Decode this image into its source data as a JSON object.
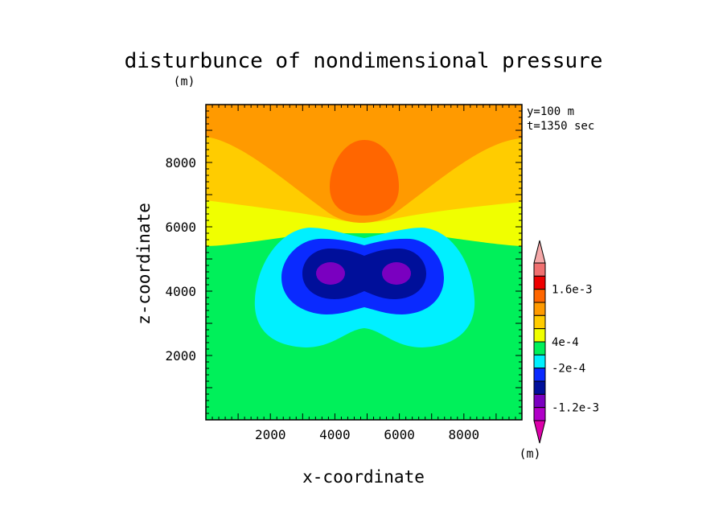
{
  "chart_data": {
    "type": "contour",
    "title": "disturbunce of nondimensional pressure",
    "xlabel": "x-coordinate",
    "ylabel": "z-coordinate",
    "x_unit": "(m)",
    "y_unit": "(m)",
    "xlim": [
      0,
      9800
    ],
    "ylim": [
      0,
      9800
    ],
    "xticks": [
      "2000",
      "4000",
      "6000",
      "8000"
    ],
    "xtick_values": [
      2000,
      4000,
      6000,
      8000
    ],
    "yticks": [
      "2000",
      "4000",
      "6000",
      "8000"
    ],
    "ytick_values": [
      2000,
      4000,
      6000,
      8000
    ],
    "annotations": [
      "y=100 m",
      "t=1350 sec"
    ],
    "colorbar": {
      "levels": [
        {
          "color": "#dd00aa",
          "name": "below"
        },
        {
          "color": "#b000c8"
        },
        {
          "color": "#7a00c0"
        },
        {
          "color": "#000f9a"
        },
        {
          "color": "#0a2aff"
        },
        {
          "color": "#00f0ff"
        },
        {
          "color": "#00f05a"
        },
        {
          "color": "#f0ff00"
        },
        {
          "color": "#ffcc00"
        },
        {
          "color": "#ff9a00"
        },
        {
          "color": "#ff6600"
        },
        {
          "color": "#ee0000"
        },
        {
          "color": "#f07070"
        },
        {
          "color": "#f5a8a8",
          "name": "above"
        }
      ],
      "labels": [
        "1.6e-3",
        "4e-4",
        "-2e-4",
        "-1.2e-3"
      ]
    }
  }
}
